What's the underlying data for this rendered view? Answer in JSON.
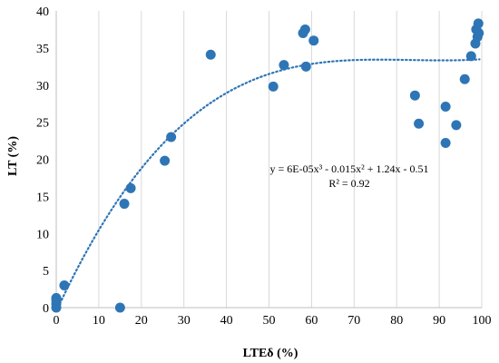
{
  "chart_data": {
    "type": "scatter",
    "xlabel": "LTEδ (%)",
    "ylabel": "LT (%)",
    "xlim": [
      0,
      100
    ],
    "ylim": [
      0,
      40
    ],
    "xticks": [
      0,
      10,
      20,
      30,
      40,
      50,
      60,
      70,
      80,
      90,
      100
    ],
    "yticks": [
      0,
      5,
      10,
      15,
      20,
      25,
      30,
      35,
      40
    ],
    "grid": "vertical",
    "marker_color": "#2E75B6",
    "trendline": {
      "kind": "polynomial",
      "degree": 3,
      "coefficients": [
        6e-05,
        -0.015,
        1.24,
        -0.51
      ],
      "style": "dotted",
      "color": "#2E75B6",
      "equation": "y = 6E-05x³ - 0.015x² + 1.24x - 0.51",
      "r2": "R² = 0.92"
    },
    "series": [
      {
        "points": [
          [
            0,
            0
          ],
          [
            0,
            0.5
          ],
          [
            0,
            1.0
          ],
          [
            0,
            1.3
          ],
          [
            1.9,
            3.0
          ],
          [
            15,
            0
          ],
          [
            16,
            14
          ],
          [
            17.5,
            16.1
          ],
          [
            25.5,
            19.8
          ],
          [
            27,
            23
          ],
          [
            36.3,
            34.1
          ],
          [
            51,
            29.8
          ],
          [
            53.5,
            32.7
          ],
          [
            58,
            37
          ],
          [
            58.5,
            37.5
          ],
          [
            58.7,
            32.5
          ],
          [
            60.5,
            36
          ],
          [
            84.3,
            28.6
          ],
          [
            85.2,
            24.8
          ],
          [
            91.5,
            27.1
          ],
          [
            91.5,
            22.2
          ],
          [
            94,
            24.6
          ],
          [
            96,
            30.8
          ],
          [
            97.5,
            33.9
          ],
          [
            98.5,
            35.6
          ],
          [
            98.7,
            37.5
          ],
          [
            99,
            36.5
          ],
          [
            99.2,
            38.3
          ],
          [
            99.3,
            37
          ]
        ]
      }
    ]
  }
}
